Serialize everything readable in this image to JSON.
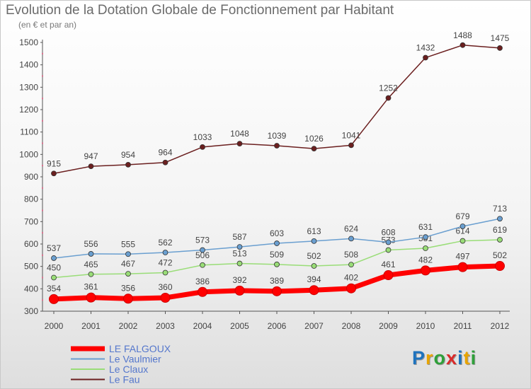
{
  "title": "Evolution de la Dotation Globale de Fonctionnement par Habitant",
  "subtitle": "(en € et par an)",
  "logo": {
    "letters": [
      "P",
      "r",
      "o",
      "x",
      "i",
      "t",
      "i"
    ],
    "colors": [
      "#1e73be",
      "#e8a400",
      "#2fa03a",
      "#d92b2b",
      "#1e73be",
      "#e8a400",
      "#2fa03a"
    ]
  },
  "chart_data": {
    "type": "line",
    "title": "Evolution de la Dotation Globale de Fonctionnement par Habitant",
    "subtitle": "(en € et par an)",
    "xlabel": "",
    "ylabel": "",
    "x": [
      "2000",
      "2001",
      "2002",
      "2003",
      "2004",
      "2005",
      "2006",
      "2007",
      "2008",
      "2009",
      "2010",
      "2011",
      "2012"
    ],
    "ylim": [
      300,
      1500
    ],
    "yticks": [
      "300",
      "400",
      "500",
      "600",
      "700",
      "800",
      "900",
      "1000",
      "1100",
      "1200",
      "1300",
      "1400",
      "1500"
    ],
    "grid": false,
    "legend_position": "bottom-left",
    "series": [
      {
        "name": "LE FALGOUX",
        "color": "#ff0000",
        "values": [
          354,
          361,
          356,
          360,
          386,
          392,
          389,
          394,
          402,
          461,
          482,
          497,
          502
        ]
      },
      {
        "name": "Le Vaulmier",
        "color": "#6a9fd0",
        "values": [
          537,
          556,
          555,
          562,
          573,
          587,
          603,
          613,
          624,
          608,
          631,
          679,
          713
        ]
      },
      {
        "name": "Le Claux",
        "color": "#99dd77",
        "values": [
          450,
          465,
          467,
          472,
          506,
          513,
          509,
          502,
          508,
          573,
          581,
          614,
          619
        ]
      },
      {
        "name": "Le Fau",
        "color": "#6b1f1f",
        "values": [
          915,
          947,
          954,
          964,
          1033,
          1048,
          1039,
          1026,
          1041,
          1252,
          1432,
          1488,
          1475
        ]
      }
    ]
  }
}
